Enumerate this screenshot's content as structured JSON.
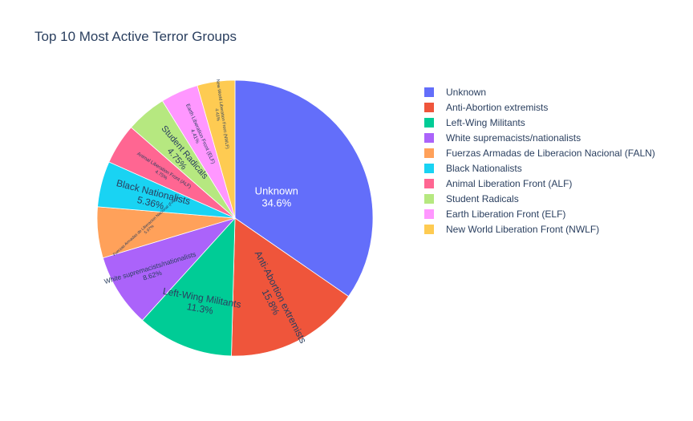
{
  "chart_data": {
    "type": "pie",
    "title": "Top 10 Most Active Terror Groups",
    "slices": [
      {
        "label": "Unknown",
        "percent_label": "34.6%",
        "value": 34.6,
        "color": "#636efa"
      },
      {
        "label": "Anti-Abortion extremists",
        "percent_label": "15.8%",
        "value": 15.8,
        "color": "#EF553B"
      },
      {
        "label": "Left-Wing Militants",
        "percent_label": "11.3%",
        "value": 11.3,
        "color": "#00cc96"
      },
      {
        "label": "White supremacists/nationalists",
        "percent_label": "8.62%",
        "value": 8.62,
        "color": "#ab63fa"
      },
      {
        "label": "Fuerzas Armadas de Liberacion Nacional (FALN)",
        "percent_label": "5.97%",
        "value": 5.97,
        "color": "#FFA15A"
      },
      {
        "label": "Black Nationalists",
        "percent_label": "5.36%",
        "value": 5.36,
        "color": "#19d3f3"
      },
      {
        "label": "Animal Liberation Front (ALF)",
        "percent_label": "4.75%",
        "value": 4.75,
        "color": "#FF6692"
      },
      {
        "label": "Student Radicals",
        "percent_label": "4.75%",
        "value": 4.75,
        "color": "#B6E880"
      },
      {
        "label": "Earth Liberation Front (ELF)",
        "percent_label": "4.41%",
        "value": 4.41,
        "color": "#FF97FF"
      },
      {
        "label": "New World Liberation Front (NWLF)",
        "percent_label": "4.41%",
        "value": 4.41,
        "color": "#FECB52"
      }
    ],
    "legend_position": "right",
    "start_angle": "12 o'clock",
    "direction": "clockwise"
  }
}
